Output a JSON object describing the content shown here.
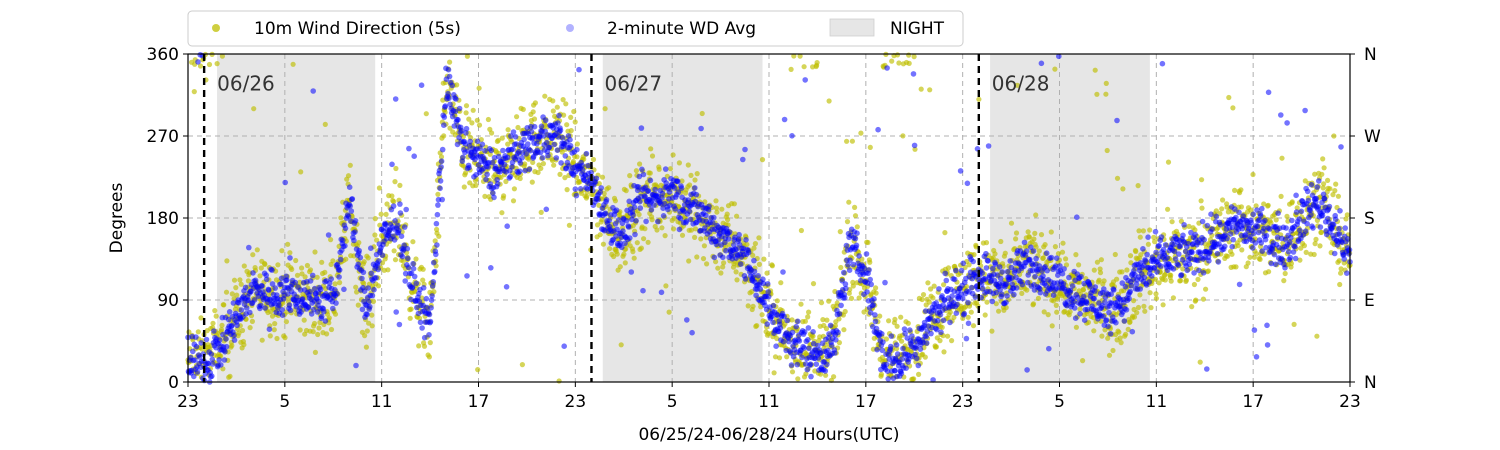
{
  "chart_data": {
    "type": "scatter",
    "xlabel": "06/25/24-06/28/24  Hours(UTC)",
    "ylabel": "Degrees",
    "ylim": [
      0,
      360
    ],
    "xlim_hours": [
      0,
      72
    ],
    "x_ticks": [
      {
        "hour": 0,
        "label": "23"
      },
      {
        "hour": 6,
        "label": "5"
      },
      {
        "hour": 12,
        "label": "11"
      },
      {
        "hour": 18,
        "label": "17"
      },
      {
        "hour": 24,
        "label": "23"
      },
      {
        "hour": 30,
        "label": "5"
      },
      {
        "hour": 36,
        "label": "11"
      },
      {
        "hour": 42,
        "label": "17"
      },
      {
        "hour": 48,
        "label": "23"
      },
      {
        "hour": 54,
        "label": "5"
      },
      {
        "hour": 60,
        "label": "11"
      },
      {
        "hour": 66,
        "label": "17"
      },
      {
        "hour": 72,
        "label": "23"
      }
    ],
    "y_ticks": [
      0,
      90,
      180,
      270,
      360
    ],
    "y_ticks_right": [
      {
        "value": 0,
        "label": "N"
      },
      {
        "value": 90,
        "label": "E"
      },
      {
        "value": 180,
        "label": "S"
      },
      {
        "value": 270,
        "label": "W"
      },
      {
        "value": 360,
        "label": "N"
      }
    ],
    "grid": true,
    "legend_position": "top (above plot)",
    "legend": [
      {
        "label": "10m Wind Direction (5s)",
        "color": "#bfbf00",
        "kind": "marker"
      },
      {
        "label": "2-minute WD Avg",
        "color": "#0000ff",
        "kind": "marker"
      },
      {
        "label": "NIGHT",
        "color": "#e6e6e6",
        "kind": "patch"
      }
    ],
    "night_periods_hours": [
      [
        1.8,
        11.6
      ],
      [
        25.7,
        35.6
      ],
      [
        49.7,
        59.6
      ]
    ],
    "day_markers": [
      {
        "hour": 1.0,
        "label": "06/26"
      },
      {
        "hour": 25.0,
        "label": "06/27"
      },
      {
        "hour": 49.0,
        "label": "06/28"
      }
    ],
    "series": [
      {
        "name": "10m Wind Direction (5s)",
        "color": "#bfbf00",
        "x_hours": [
          0,
          1,
          2,
          3,
          4,
          5,
          6,
          7,
          8,
          9,
          10,
          11,
          12,
          13,
          14,
          15,
          16,
          17,
          18,
          19,
          20,
          21,
          22,
          23,
          24,
          25,
          26,
          27,
          28,
          29,
          30,
          31,
          32,
          33,
          34,
          35,
          36,
          37,
          38,
          39,
          40,
          41,
          42,
          43,
          44,
          45,
          46,
          47,
          48,
          49,
          50,
          51,
          52,
          53,
          54,
          55,
          56,
          57,
          58,
          59,
          60,
          61,
          62,
          63,
          64,
          65,
          66,
          67,
          68,
          69,
          70,
          71,
          72
        ],
        "values": [
          20,
          20,
          40,
          70,
          100,
          100,
          95,
          95,
          90,
          90,
          200,
          80,
          150,
          180,
          100,
          60,
          330,
          260,
          240,
          230,
          245,
          260,
          270,
          270,
          235,
          220,
          180,
          160,
          200,
          200,
          210,
          190,
          180,
          160,
          150,
          120,
          80,
          50,
          40,
          30,
          40,
          150,
          120,
          30,
          20,
          40,
          70,
          90,
          100,
          120,
          110,
          110,
          130,
          120,
          110,
          100,
          90,
          80,
          90,
          120,
          130,
          140,
          140,
          150,
          160,
          175,
          165,
          160,
          150,
          180,
          200,
          170,
          140
        ],
        "spread": 45
      },
      {
        "name": "2-minute WD Avg",
        "color": "#0000ff",
        "x_hours": [
          0,
          1,
          2,
          3,
          4,
          5,
          6,
          7,
          8,
          9,
          10,
          11,
          12,
          13,
          14,
          15,
          16,
          17,
          18,
          19,
          20,
          21,
          22,
          23,
          24,
          25,
          26,
          27,
          28,
          29,
          30,
          31,
          32,
          33,
          34,
          35,
          36,
          37,
          38,
          39,
          40,
          41,
          42,
          43,
          44,
          45,
          46,
          47,
          48,
          49,
          50,
          51,
          52,
          53,
          54,
          55,
          56,
          57,
          58,
          59,
          60,
          61,
          62,
          63,
          64,
          65,
          66,
          67,
          68,
          69,
          70,
          71,
          72
        ],
        "values": [
          20,
          20,
          40,
          70,
          100,
          100,
          95,
          95,
          90,
          90,
          200,
          80,
          150,
          180,
          100,
          60,
          330,
          260,
          240,
          230,
          245,
          260,
          270,
          270,
          235,
          220,
          180,
          160,
          200,
          200,
          210,
          190,
          180,
          160,
          150,
          120,
          80,
          50,
          40,
          30,
          40,
          150,
          120,
          30,
          20,
          40,
          70,
          90,
          100,
          120,
          110,
          110,
          130,
          120,
          110,
          100,
          90,
          80,
          90,
          120,
          130,
          140,
          140,
          150,
          160,
          175,
          165,
          160,
          150,
          180,
          200,
          170,
          140
        ],
        "spread": 25
      }
    ]
  }
}
